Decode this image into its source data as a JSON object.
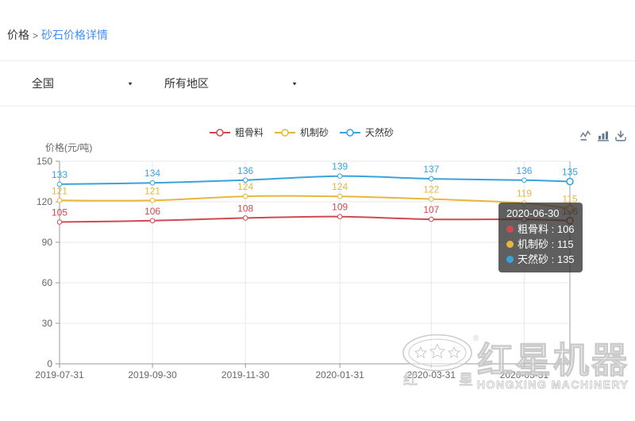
{
  "breadcrumb": {
    "section": "价格",
    "separator": ">",
    "current": "砂石价格详情"
  },
  "filters": {
    "region": {
      "value": "全国"
    },
    "area": {
      "value": "所有地区"
    }
  },
  "toolbox": {
    "icons": [
      "line-chart",
      "bar-chart",
      "download"
    ]
  },
  "tooltip": {
    "date": "2020-06-30",
    "separator": " : ",
    "rows": [
      {
        "name": "粗骨料",
        "value": "106",
        "color": "#cf4a4f"
      },
      {
        "name": "机制砂",
        "value": "115",
        "color": "#e7b73c"
      },
      {
        "name": "天然砂",
        "value": "135",
        "color": "#39a3dc"
      }
    ]
  },
  "watermark": {
    "brand_cn": "红星机器",
    "brand_en": "HONGXING MACHINERY",
    "registered": "®",
    "small_chars": [
      "红",
      "星"
    ]
  },
  "chart_data": {
    "type": "line",
    "ylabel": "价格(元/吨)",
    "x": [
      "2019-07-31",
      "2019-09-30",
      "2019-11-30",
      "2020-01-31",
      "2020-03-31",
      "2020-05-31",
      "2020-06-30"
    ],
    "x_axis_labels_visible": [
      "2019-07-31",
      "2019-09-30",
      "2019-11-30",
      "2020-01-31",
      "2020-03-31",
      "2020-05-31"
    ],
    "series": [
      {
        "name": "粗骨料",
        "color": "#cf4a4f",
        "values": [
          105,
          106,
          108,
          109,
          107,
          107,
          106
        ],
        "labels_hidden_at": [
          "2020-05-31"
        ]
      },
      {
        "name": "机制砂",
        "color": "#e7b73c",
        "values": [
          121,
          121,
          124,
          124,
          122,
          119,
          115
        ],
        "labels_hidden_at": []
      },
      {
        "name": "天然砂",
        "color": "#39a3dc",
        "values": [
          133,
          134,
          136,
          139,
          137,
          136,
          135
        ],
        "labels_hidden_at": []
      }
    ],
    "ylim": [
      0,
      150
    ],
    "yticks": [
      0,
      30,
      60,
      90,
      120,
      150
    ],
    "grid": true,
    "legend_position": "top-center",
    "axis_pointer_x": "2020-06-30"
  }
}
